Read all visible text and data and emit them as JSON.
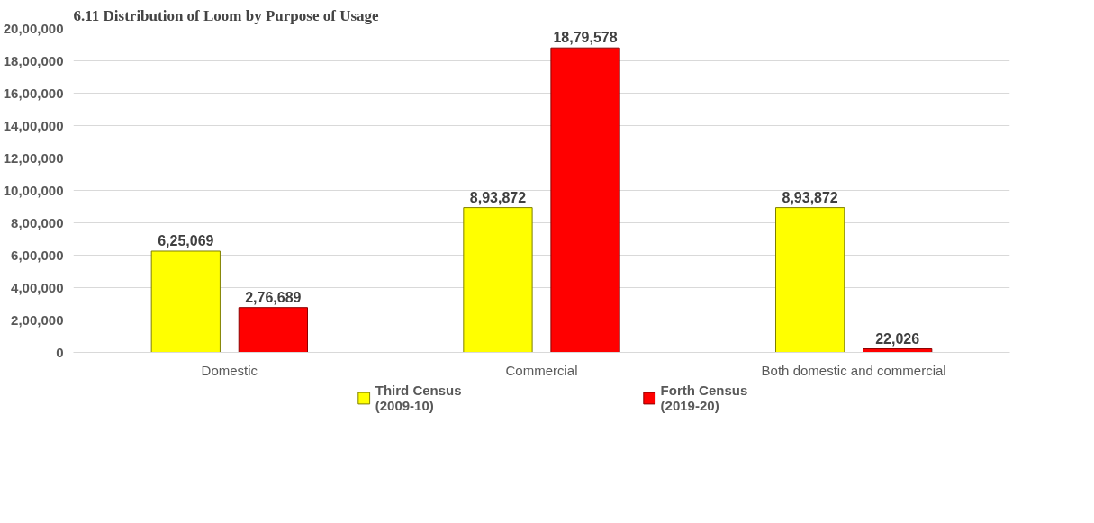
{
  "chart_data": {
    "type": "bar",
    "title": "6.11 Distribution of Loom by Purpose of Usage",
    "categories": [
      "Domestic",
      "Commercial",
      "Both domestic and commercial"
    ],
    "series": [
      {
        "name": "Third Census\n(2009-10)",
        "color": "#ffff00",
        "values": [
          625069,
          893872,
          893872
        ],
        "value_labels": [
          "6,25,069",
          "8,93,872",
          "8,93,872"
        ]
      },
      {
        "name": "Forth Census\n(2019-20)",
        "color": "#ff0000",
        "values": [
          276689,
          1879578,
          22026
        ],
        "value_labels": [
          "2,76,689",
          "18,79,578",
          "22,026"
        ]
      }
    ],
    "ylim": [
      0,
      2000000
    ],
    "yticks": [
      0,
      {
        "value": 200000,
        "label": "2,00,000"
      },
      {
        "value": 400000,
        "label": "4,00,000"
      },
      {
        "value": 600000,
        "label": "6,00,000"
      },
      {
        "value": 800000,
        "label": "8,00,000"
      },
      {
        "value": 1000000,
        "label": "10,00,000"
      },
      {
        "value": 1200000,
        "label": "12,00,000"
      },
      {
        "value": 1400000,
        "label": "14,00,000"
      },
      {
        "value": 1600000,
        "label": "16,00,000"
      },
      {
        "value": 1800000,
        "label": "18,00,000"
      },
      {
        "value": 2000000,
        "label": "20,00,000"
      }
    ],
    "grid": "y",
    "legend": "bottom"
  }
}
